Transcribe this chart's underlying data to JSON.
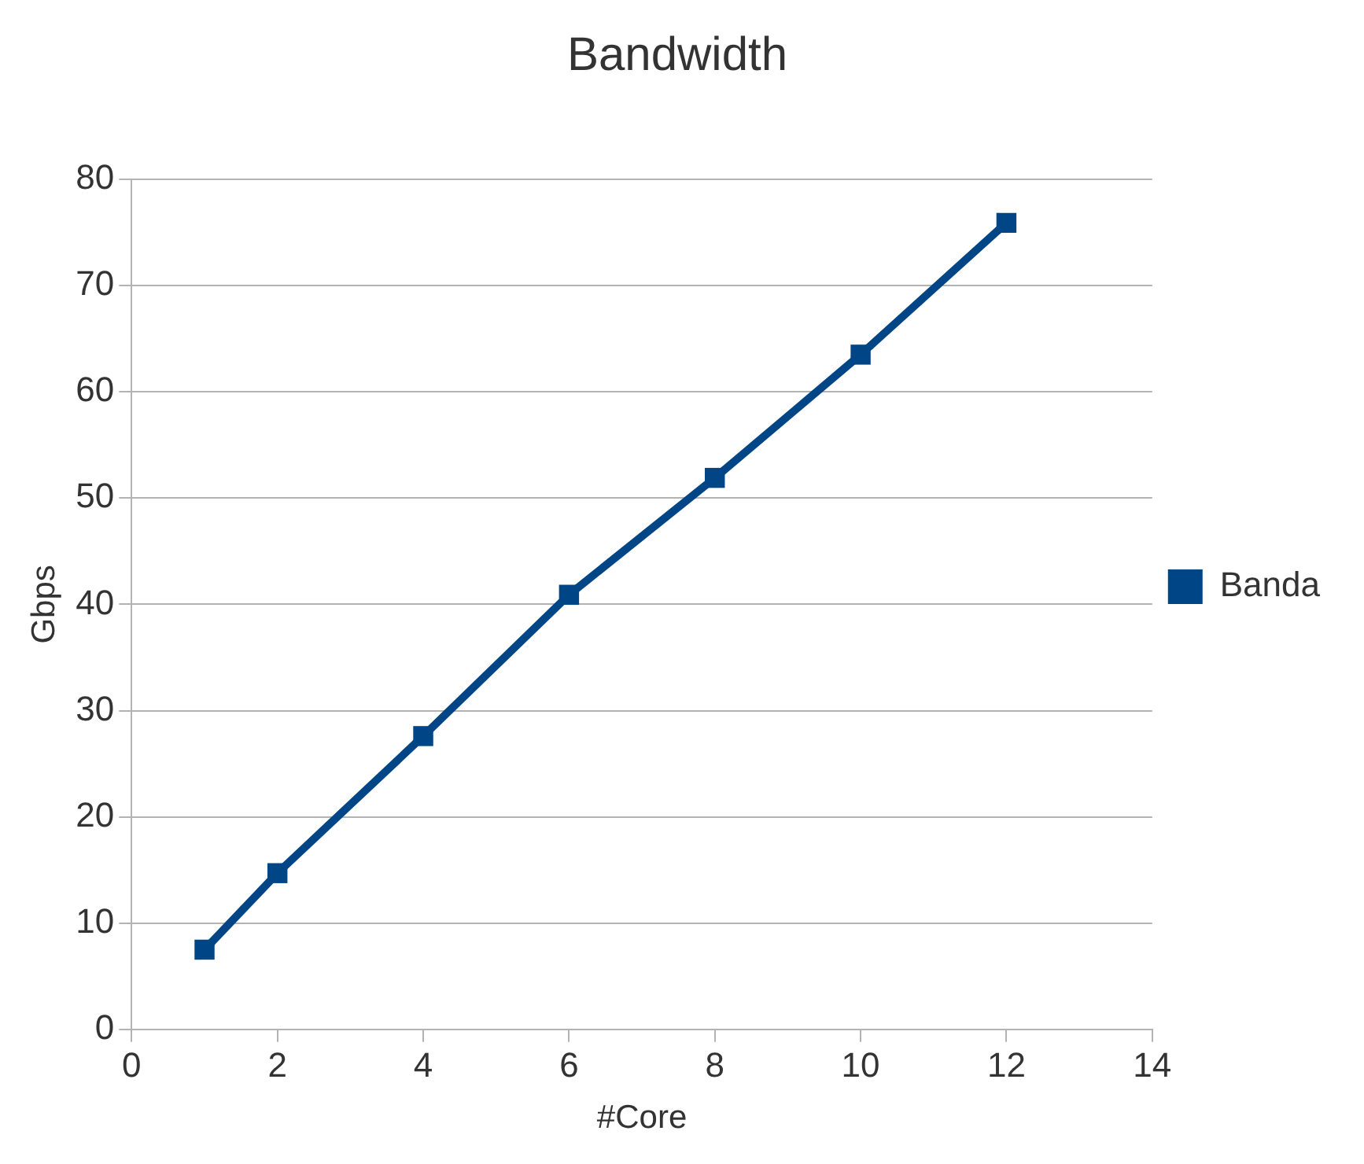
{
  "chart_data": {
    "type": "line",
    "title": "Bandwidth",
    "xlabel": "#Core",
    "ylabel": "Gbps",
    "x": [
      1,
      2,
      4,
      6,
      8,
      10,
      12
    ],
    "series": [
      {
        "name": "Banda",
        "color": "#004586",
        "values": [
          7.5,
          14.7,
          27.6,
          40.9,
          51.9,
          63.5,
          75.9
        ]
      }
    ],
    "xlim": [
      0,
      14
    ],
    "xticks": [
      0,
      2,
      4,
      6,
      8,
      10,
      12,
      14
    ],
    "ylim": [
      0,
      80
    ],
    "yticks": [
      0,
      10,
      20,
      30,
      40,
      50,
      60,
      70,
      80
    ],
    "grid": "y",
    "legend": "right",
    "marker": "square",
    "line_style": "solid"
  }
}
